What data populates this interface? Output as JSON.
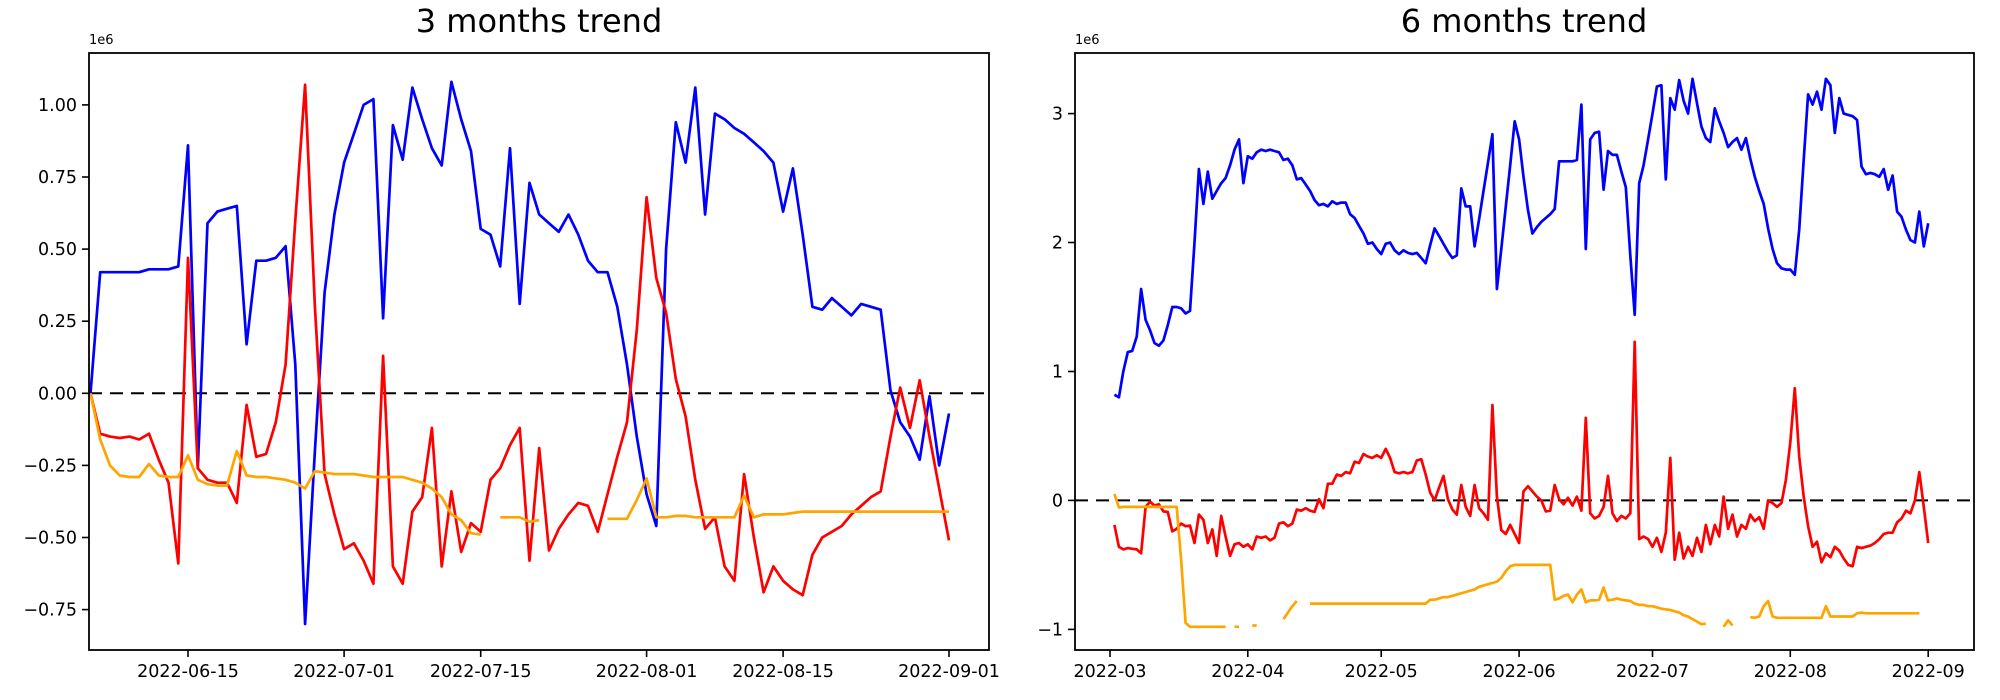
{
  "figure": {
    "background": "#ffffff"
  },
  "chart_data": [
    {
      "type": "line",
      "title": "3 months trend",
      "offset_label": "1e6",
      "x_start_date": "2022-06-05",
      "x_index_offset_days": 0,
      "xlim_days": [
        -0.15,
        92.1
      ],
      "ylim": [
        -0.89,
        1.18
      ],
      "y_unit": "1e6",
      "grid": false,
      "legend": null,
      "zero_line": true,
      "y_ticks": [
        {
          "v": 1.0,
          "label": "1.00"
        },
        {
          "v": 0.75,
          "label": "0.75"
        },
        {
          "v": 0.5,
          "label": "0.50"
        },
        {
          "v": 0.25,
          "label": "0.25"
        },
        {
          "v": 0.0,
          "label": "0.00"
        },
        {
          "v": -0.25,
          "label": "−0.25"
        },
        {
          "v": -0.5,
          "label": "−0.50"
        },
        {
          "v": -0.75,
          "label": "−0.75"
        }
      ],
      "x_ticks": [
        {
          "d": 10,
          "label": "2022-06-15"
        },
        {
          "d": 26,
          "label": "2022-07-01"
        },
        {
          "d": 40,
          "label": "2022-07-15"
        },
        {
          "d": 57,
          "label": "2022-08-01"
        },
        {
          "d": 71,
          "label": "2022-08-15"
        },
        {
          "d": 88,
          "label": "2022-09-01"
        }
      ],
      "series": [
        {
          "name": "blue",
          "color": "#0000ff",
          "values": [
            0.0,
            0.42,
            0.42,
            0.42,
            0.42,
            0.42,
            0.43,
            0.43,
            0.43,
            0.44,
            0.86,
            -0.26,
            0.59,
            0.63,
            0.64,
            0.65,
            0.17,
            0.46,
            0.46,
            0.47,
            0.51,
            0.1,
            -0.8,
            -0.2,
            0.35,
            0.62,
            0.8,
            0.9,
            1.0,
            1.02,
            0.26,
            0.93,
            0.81,
            1.06,
            0.95,
            0.85,
            0.79,
            1.08,
            0.95,
            0.84,
            0.57,
            0.55,
            0.44,
            0.85,
            0.31,
            0.73,
            0.62,
            0.59,
            0.56,
            0.62,
            0.55,
            0.46,
            0.42,
            0.42,
            0.3,
            0.1,
            -0.15,
            -0.35,
            -0.46,
            0.5,
            0.94,
            0.8,
            1.06,
            0.62,
            0.97,
            0.95,
            0.92,
            0.9,
            0.87,
            0.84,
            0.8,
            0.63,
            0.78,
            0.55,
            0.3,
            0.29,
            0.33,
            0.3,
            0.27,
            0.31,
            0.3,
            0.29,
            0.01,
            -0.1,
            -0.15,
            -0.23,
            -0.01,
            -0.25,
            -0.07
          ]
        },
        {
          "name": "red",
          "color": "#ff0000",
          "values": [
            0.0,
            -0.14,
            -0.15,
            -0.155,
            -0.15,
            -0.16,
            -0.14,
            -0.23,
            -0.31,
            -0.59,
            0.47,
            -0.26,
            -0.3,
            -0.31,
            -0.31,
            -0.38,
            -0.04,
            -0.22,
            -0.21,
            -0.1,
            0.1,
            0.6,
            1.07,
            0.3,
            -0.28,
            -0.42,
            -0.54,
            -0.52,
            -0.58,
            -0.66,
            0.13,
            -0.6,
            -0.66,
            -0.41,
            -0.36,
            -0.12,
            -0.6,
            -0.34,
            -0.55,
            -0.45,
            -0.48,
            -0.3,
            -0.26,
            -0.18,
            -0.12,
            -0.58,
            -0.19,
            -0.545,
            -0.47,
            -0.42,
            -0.38,
            -0.39,
            -0.48,
            -0.35,
            -0.22,
            -0.1,
            0.22,
            0.68,
            0.4,
            0.28,
            0.05,
            -0.08,
            -0.3,
            -0.47,
            -0.43,
            -0.6,
            -0.65,
            -0.28,
            -0.5,
            -0.69,
            -0.6,
            -0.65,
            -0.68,
            -0.7,
            -0.56,
            -0.5,
            -0.48,
            -0.46,
            -0.42,
            -0.39,
            -0.36,
            -0.34,
            -0.15,
            0.02,
            -0.12,
            0.045,
            -0.15,
            -0.33,
            -0.51
          ]
        },
        {
          "name": "orange",
          "color": "#ffa500",
          "values": [
            0.0,
            -0.16,
            -0.25,
            -0.285,
            -0.29,
            -0.29,
            -0.245,
            -0.285,
            -0.29,
            -0.29,
            -0.215,
            -0.3,
            -0.315,
            -0.32,
            -0.32,
            -0.2,
            -0.285,
            -0.29,
            -0.29,
            -0.295,
            -0.3,
            -0.31,
            -0.33,
            -0.27,
            -0.275,
            -0.28,
            -0.28,
            -0.28,
            -0.285,
            -0.29,
            -0.29,
            -0.29,
            -0.29,
            -0.3,
            -0.31,
            -0.33,
            -0.36,
            -0.42,
            -0.44,
            -0.485,
            -0.49,
            null,
            -0.43,
            -0.43,
            -0.43,
            -0.445,
            -0.44,
            null,
            null,
            null,
            null,
            null,
            null,
            -0.435,
            -0.435,
            -0.435,
            -0.37,
            -0.295,
            -0.43,
            -0.43,
            -0.425,
            -0.425,
            -0.43,
            -0.43,
            -0.43,
            -0.43,
            -0.43,
            -0.355,
            -0.43,
            -0.42,
            -0.42,
            -0.42,
            -0.415,
            -0.41,
            -0.41,
            -0.41,
            -0.41,
            -0.41,
            -0.41,
            -0.41,
            -0.41,
            -0.41,
            -0.41,
            -0.41,
            -0.41,
            -0.41,
            -0.41,
            -0.41,
            -0.41
          ]
        }
      ]
    },
    {
      "type": "line",
      "title": "6 months trend",
      "offset_label": "1e6",
      "x_start_date": "2022-03-02",
      "x_index_offset_days": 1,
      "xlim_days": [
        -7.87,
        194.3
      ],
      "ylim": [
        -1.16,
        3.47
      ],
      "y_unit": "1e6",
      "grid": false,
      "legend": null,
      "zero_line": true,
      "y_ticks": [
        {
          "v": 3,
          "label": "3"
        },
        {
          "v": 2,
          "label": "2"
        },
        {
          "v": 1,
          "label": "1"
        },
        {
          "v": 0,
          "label": "0"
        },
        {
          "v": -1,
          "label": "−1"
        }
      ],
      "x_ticks": [
        {
          "d": 0,
          "label": "2022-03"
        },
        {
          "d": 31,
          "label": "2022-04"
        },
        {
          "d": 61,
          "label": "2022-05"
        },
        {
          "d": 92,
          "label": "2022-06"
        },
        {
          "d": 122,
          "label": "2022-07"
        },
        {
          "d": 153,
          "label": "2022-08"
        },
        {
          "d": 184,
          "label": "2022-09"
        }
      ],
      "series": [
        {
          "name": "blue",
          "color": "#0000ff",
          "values": [
            0.82,
            0.8,
            1.0,
            1.15,
            1.16,
            1.27,
            1.64,
            1.4,
            1.32,
            1.22,
            1.2,
            1.24,
            1.36,
            1.5,
            1.5,
            1.49,
            1.45,
            1.47,
            2.0,
            2.57,
            2.3,
            2.55,
            2.34,
            2.4,
            2.46,
            2.5,
            2.6,
            2.72,
            2.8,
            2.46,
            2.67,
            2.65,
            2.7,
            2.72,
            2.71,
            2.72,
            2.71,
            2.7,
            2.64,
            2.65,
            2.6,
            2.49,
            2.5,
            2.45,
            2.4,
            2.33,
            2.29,
            2.3,
            2.28,
            2.32,
            2.3,
            2.31,
            2.31,
            2.22,
            2.19,
            2.13,
            2.07,
            1.99,
            2.0,
            1.95,
            1.91,
            1.99,
            2.0,
            1.94,
            1.91,
            1.94,
            1.92,
            1.91,
            1.92,
            1.88,
            1.84,
            1.98,
            2.11,
            2.05,
            1.99,
            1.93,
            1.88,
            1.9,
            2.42,
            2.28,
            2.28,
            1.97,
            2.18,
            2.4,
            2.62,
            2.84,
            1.64,
            1.95,
            2.28,
            2.6,
            2.94,
            2.8,
            2.51,
            2.25,
            2.07,
            2.12,
            2.16,
            2.19,
            2.22,
            2.26,
            2.63,
            2.63,
            2.63,
            2.63,
            2.64,
            3.07,
            1.95,
            2.8,
            2.85,
            2.86,
            2.41,
            2.71,
            2.68,
            2.68,
            2.55,
            2.43,
            1.9,
            1.44,
            2.46,
            2.6,
            2.8,
            3.0,
            3.21,
            3.22,
            2.49,
            3.12,
            3.03,
            3.26,
            3.1,
            3.0,
            3.27,
            3.08,
            2.9,
            2.81,
            2.78,
            3.04,
            2.94,
            2.85,
            2.74,
            2.78,
            2.81,
            2.72,
            2.81,
            2.65,
            2.51,
            2.4,
            2.3,
            2.11,
            1.95,
            1.84,
            1.8,
            1.79,
            1.79,
            1.75,
            2.1,
            2.64,
            3.15,
            3.07,
            3.17,
            3.03,
            3.27,
            3.22,
            2.85,
            3.12,
            3.0,
            2.99,
            2.98,
            2.95,
            2.59,
            2.53,
            2.54,
            2.53,
            2.51,
            2.57,
            2.41,
            2.52,
            2.24,
            2.2,
            2.1,
            2.02,
            2.0,
            2.24,
            1.97,
            2.15
          ]
        },
        {
          "name": "red",
          "color": "#ff0000",
          "values": [
            -0.19,
            -0.36,
            -0.38,
            -0.37,
            -0.375,
            -0.38,
            -0.41,
            -0.05,
            -0.01,
            -0.04,
            -0.03,
            -0.085,
            -0.09,
            -0.24,
            -0.22,
            -0.18,
            -0.2,
            -0.195,
            -0.33,
            -0.11,
            -0.15,
            -0.33,
            -0.225,
            -0.43,
            -0.12,
            -0.28,
            -0.43,
            -0.34,
            -0.33,
            -0.36,
            -0.34,
            -0.38,
            -0.28,
            -0.29,
            -0.28,
            -0.31,
            -0.29,
            -0.18,
            -0.17,
            -0.2,
            -0.18,
            -0.07,
            -0.08,
            -0.06,
            -0.08,
            -0.09,
            0.01,
            -0.06,
            0.13,
            0.13,
            0.2,
            0.19,
            0.22,
            0.21,
            0.3,
            0.29,
            0.36,
            0.34,
            0.33,
            0.35,
            0.33,
            0.4,
            0.33,
            0.22,
            0.21,
            0.22,
            0.21,
            0.22,
            0.31,
            0.32,
            0.2,
            0.06,
            0.0,
            0.1,
            0.19,
            0.01,
            -0.07,
            -0.11,
            0.12,
            -0.05,
            -0.12,
            0.12,
            -0.06,
            -0.1,
            -0.15,
            0.74,
            0.03,
            -0.23,
            -0.26,
            -0.19,
            -0.26,
            -0.33,
            0.07,
            0.11,
            0.07,
            0.03,
            0.0,
            -0.085,
            -0.08,
            0.12,
            0.01,
            -0.03,
            0.02,
            -0.04,
            0.03,
            -0.08,
            0.64,
            -0.1,
            -0.14,
            -0.12,
            -0.05,
            0.19,
            -0.1,
            -0.16,
            -0.12,
            -0.14,
            -0.1,
            1.23,
            -0.3,
            -0.28,
            -0.3,
            -0.36,
            -0.29,
            -0.4,
            -0.25,
            0.33,
            -0.46,
            -0.25,
            -0.45,
            -0.36,
            -0.43,
            -0.29,
            -0.4,
            -0.19,
            -0.34,
            -0.19,
            -0.28,
            0.03,
            -0.22,
            -0.11,
            -0.28,
            -0.19,
            -0.22,
            -0.11,
            -0.16,
            -0.13,
            -0.22,
            0.0,
            -0.02,
            -0.05,
            -0.02,
            0.16,
            0.45,
            0.87,
            0.34,
            0.03,
            -0.2,
            -0.36,
            -0.32,
            -0.48,
            -0.41,
            -0.44,
            -0.36,
            -0.39,
            -0.45,
            -0.5,
            -0.51,
            -0.36,
            -0.37,
            -0.36,
            -0.35,
            -0.33,
            -0.3,
            -0.26,
            -0.25,
            -0.25,
            -0.17,
            -0.14,
            -0.08,
            -0.1,
            0.0,
            0.22,
            -0.05,
            -0.33
          ]
        },
        {
          "name": "orange",
          "color": "#ffa500",
          "values": [
            0.05,
            -0.055,
            -0.05,
            -0.05,
            -0.05,
            -0.05,
            -0.05,
            -0.05,
            -0.05,
            -0.05,
            -0.05,
            -0.05,
            -0.05,
            -0.05,
            -0.05,
            -0.46,
            -0.95,
            -0.98,
            -0.98,
            -0.98,
            -0.98,
            -0.98,
            -0.98,
            -0.98,
            -0.98,
            -0.98,
            null,
            -0.98,
            -0.98,
            null,
            null,
            -0.97,
            -0.97,
            null,
            null,
            null,
            null,
            null,
            -0.92,
            -0.87,
            -0.82,
            -0.78,
            null,
            null,
            -0.8,
            -0.8,
            -0.8,
            -0.8,
            -0.8,
            -0.8,
            -0.8,
            -0.8,
            -0.8,
            -0.8,
            -0.8,
            -0.8,
            -0.8,
            -0.8,
            -0.8,
            -0.8,
            -0.8,
            -0.8,
            -0.8,
            -0.8,
            -0.8,
            -0.8,
            -0.8,
            -0.8,
            -0.8,
            -0.8,
            -0.8,
            -0.77,
            -0.77,
            -0.76,
            -0.75,
            -0.75,
            -0.74,
            -0.73,
            -0.72,
            -0.71,
            -0.7,
            -0.69,
            -0.67,
            -0.66,
            -0.65,
            -0.64,
            -0.63,
            -0.6,
            -0.55,
            -0.51,
            -0.5,
            -0.5,
            -0.5,
            -0.5,
            -0.5,
            -0.5,
            -0.5,
            -0.5,
            -0.5,
            -0.77,
            -0.76,
            -0.74,
            -0.73,
            -0.79,
            -0.73,
            -0.69,
            -0.79,
            -0.775,
            -0.775,
            -0.77,
            -0.675,
            -0.775,
            -0.77,
            -0.76,
            -0.77,
            -0.775,
            -0.78,
            -0.8,
            -0.81,
            -0.81,
            -0.82,
            -0.82,
            -0.83,
            -0.84,
            -0.845,
            -0.85,
            -0.86,
            -0.87,
            -0.89,
            -0.9,
            -0.92,
            -0.94,
            -0.96,
            -0.955,
            null,
            null,
            null,
            -0.98,
            -0.93,
            -0.97,
            null,
            null,
            null,
            -0.905,
            -0.91,
            -0.9,
            -0.82,
            -0.78,
            -0.9,
            -0.91,
            -0.91,
            -0.91,
            -0.91,
            -0.91,
            -0.91,
            -0.91,
            -0.91,
            -0.91,
            -0.91,
            -0.91,
            -0.82,
            -0.9,
            -0.9,
            -0.9,
            -0.9,
            -0.9,
            -0.9,
            -0.875,
            -0.87,
            -0.875,
            -0.875,
            -0.875,
            -0.875,
            -0.875,
            -0.875,
            -0.875,
            -0.875,
            -0.875,
            -0.875,
            -0.875,
            -0.875,
            -0.875,
            null,
            null
          ]
        }
      ]
    }
  ]
}
